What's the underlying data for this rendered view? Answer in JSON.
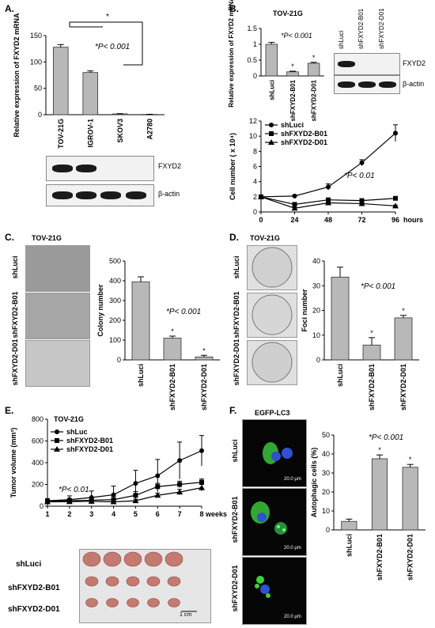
{
  "panel_labels": [
    "A.",
    "B.",
    "C.",
    "D.",
    "E.",
    "F."
  ],
  "panelA": {
    "chart_data": {
      "type": "bar",
      "ylabel": "Relative expression of FXYD2 mRNA",
      "categories": [
        "TOV-21G",
        "IGROV-1",
        "SKOV3",
        "A2780"
      ],
      "values": [
        128,
        80,
        1.5,
        0.5
      ],
      "errors": [
        5,
        3,
        0.5,
        0.3
      ],
      "ylim": [
        0,
        150
      ],
      "yticks": [
        "0",
        "50",
        "100",
        "150"
      ],
      "annotation": "*P< 0.001",
      "significance_mark": "*"
    },
    "blot_labels": [
      "FXYD2",
      "β-actin"
    ]
  },
  "panelB": {
    "title": "TOV-21G",
    "bar_chart": {
      "type": "bar",
      "ylabel": "Relative expression of FXYD2 mRNA",
      "categories": [
        "shLuci",
        "shFXYD2-B01",
        "shFXYD2-D01"
      ],
      "values": [
        1.0,
        0.13,
        0.4
      ],
      "errors": [
        0.06,
        0.02,
        0.03
      ],
      "ylim": [
        0,
        1.5
      ],
      "yticks": [
        "0",
        "0.5",
        "1",
        "1.5"
      ],
      "annotation": "*P< 0.001"
    },
    "blot_headers": [
      "shLuci",
      "shFXYD2-B01",
      "shFXYD2-D01"
    ],
    "blot_labels": [
      "FXYD2",
      "β-actin"
    ],
    "line_chart": {
      "type": "line",
      "ylabel": "Cell number ( x 10⁴)",
      "xlabel": "hours",
      "x": [
        0,
        24,
        48,
        72,
        96
      ],
      "ylim": [
        0,
        12
      ],
      "yticks": [
        "0",
        "2",
        "4",
        "6",
        "8",
        "10",
        "12"
      ],
      "series": [
        {
          "name": "shLuci",
          "values": [
            2.0,
            2.1,
            3.3,
            6.5,
            10.4
          ],
          "errors": [
            0.1,
            0.15,
            0.4,
            0.4,
            1.1
          ],
          "marker": "circle"
        },
        {
          "name": "shFXYD2-B01",
          "values": [
            2.0,
            1.0,
            1.6,
            1.5,
            1.8
          ],
          "errors": [
            0.1,
            0.1,
            0.15,
            0.15,
            0.15
          ],
          "marker": "square"
        },
        {
          "name": "shFXYD2-D01",
          "values": [
            2.0,
            0.5,
            1.2,
            1.1,
            0.8
          ],
          "errors": [
            0.1,
            0.1,
            0.1,
            0.1,
            0.1
          ],
          "marker": "triangle"
        }
      ],
      "annotation": "*P< 0.01"
    }
  },
  "panelC": {
    "title": "TOV-21G",
    "image_labels": [
      "shLuci",
      "shFXYD2-B01",
      "shFXYD2-D01"
    ],
    "chart_data": {
      "type": "bar",
      "ylabel": "Colony number",
      "categories": [
        "shLuci",
        "shFXYD2-B01",
        "shFXYD2-D01"
      ],
      "values": [
        395,
        110,
        15
      ],
      "errors": [
        25,
        10,
        8
      ],
      "ylim": [
        0,
        500
      ],
      "yticks": [
        "0",
        "100",
        "200",
        "300",
        "400",
        "500"
      ],
      "annotation": "*P< 0.001"
    }
  },
  "panelD": {
    "title": "TOV-21G",
    "image_labels": [
      "shLuci",
      "shFXYD2-B01",
      "shFXYD2-D01"
    ],
    "chart_data": {
      "type": "bar",
      "ylabel": "Foci number",
      "categories": [
        "shLuci",
        "shFXYD2-B01",
        "shFXYD2-D01"
      ],
      "values": [
        33.5,
        6,
        17
      ],
      "errors": [
        4,
        3,
        1
      ],
      "ylim": [
        0,
        40
      ],
      "yticks": [
        "0",
        "10",
        "20",
        "30",
        "40"
      ],
      "annotation": "*P< 0.001"
    }
  },
  "panelE": {
    "title": "TOV-21G",
    "chart_data": {
      "type": "line",
      "ylabel": "Tumor volume (mm³)",
      "xlabel": "weeks",
      "x": [
        1,
        2,
        3,
        4,
        5,
        6,
        7,
        8
      ],
      "ylim": [
        0,
        800
      ],
      "yticks": [
        "0",
        "200",
        "400",
        "600",
        "800"
      ],
      "series": [
        {
          "name": "shLuc",
          "values": [
            50,
            60,
            80,
            105,
            210,
            280,
            420,
            510
          ],
          "errors": [
            20,
            35,
            60,
            80,
            120,
            150,
            170,
            140
          ],
          "marker": "circle"
        },
        {
          "name": "shFXYD2-B01",
          "values": [
            45,
            50,
            55,
            60,
            100,
            180,
            200,
            220
          ],
          "errors": [
            10,
            20,
            25,
            30,
            35,
            30,
            30,
            30
          ],
          "marker": "square"
        },
        {
          "name": "shFXYD2-D01",
          "values": [
            40,
            42,
            45,
            40,
            50,
            100,
            130,
            170
          ],
          "errors": [
            8,
            10,
            12,
            10,
            15,
            20,
            25,
            30
          ],
          "marker": "triangle"
        }
      ],
      "annotation": "*P< 0.01"
    },
    "photo_labels": [
      "shLuci",
      "shFXYD2-B01",
      "shFXYD2-D01"
    ],
    "scale_label": "1 cm"
  },
  "panelF": {
    "title": "EGFP-LC3",
    "image_labels": [
      "shLuci",
      "shFXYD2-B01",
      "shFXYD2-D01"
    ],
    "scale_label": "20.0 μm",
    "chart_data": {
      "type": "bar",
      "ylabel": "Autophagic cells (%)",
      "categories": [
        "shLuci",
        "shFXYD2-B01",
        "shFXYD2-D01"
      ],
      "values": [
        4.5,
        37.5,
        33
      ],
      "errors": [
        1.2,
        2,
        1.5
      ],
      "ylim": [
        0,
        50
      ],
      "yticks": [
        "0",
        "10",
        "20",
        "30",
        "40",
        "50"
      ],
      "annotation": "*P< 0.001"
    }
  },
  "colors": {
    "bar_fill": "#b8b8b8",
    "bar_stroke": "#333333",
    "blot_bg": "#f3f3f3",
    "band": "#1a1a1a",
    "fluor_bg": "#050505",
    "green": "#3fcf3f",
    "blue": "#3050d0"
  }
}
